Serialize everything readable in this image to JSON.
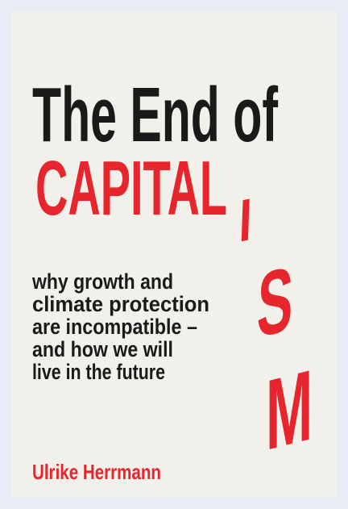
{
  "title": {
    "line1": "The End of",
    "line2": "CAPITAL",
    "falling_letters": [
      "I",
      "S",
      "M"
    ]
  },
  "subtitle": [
    "why growth and",
    "climate protection",
    "are incompatible –",
    "and how we will",
    "live in the future"
  ],
  "author": "Ulrike Herrmann"
}
